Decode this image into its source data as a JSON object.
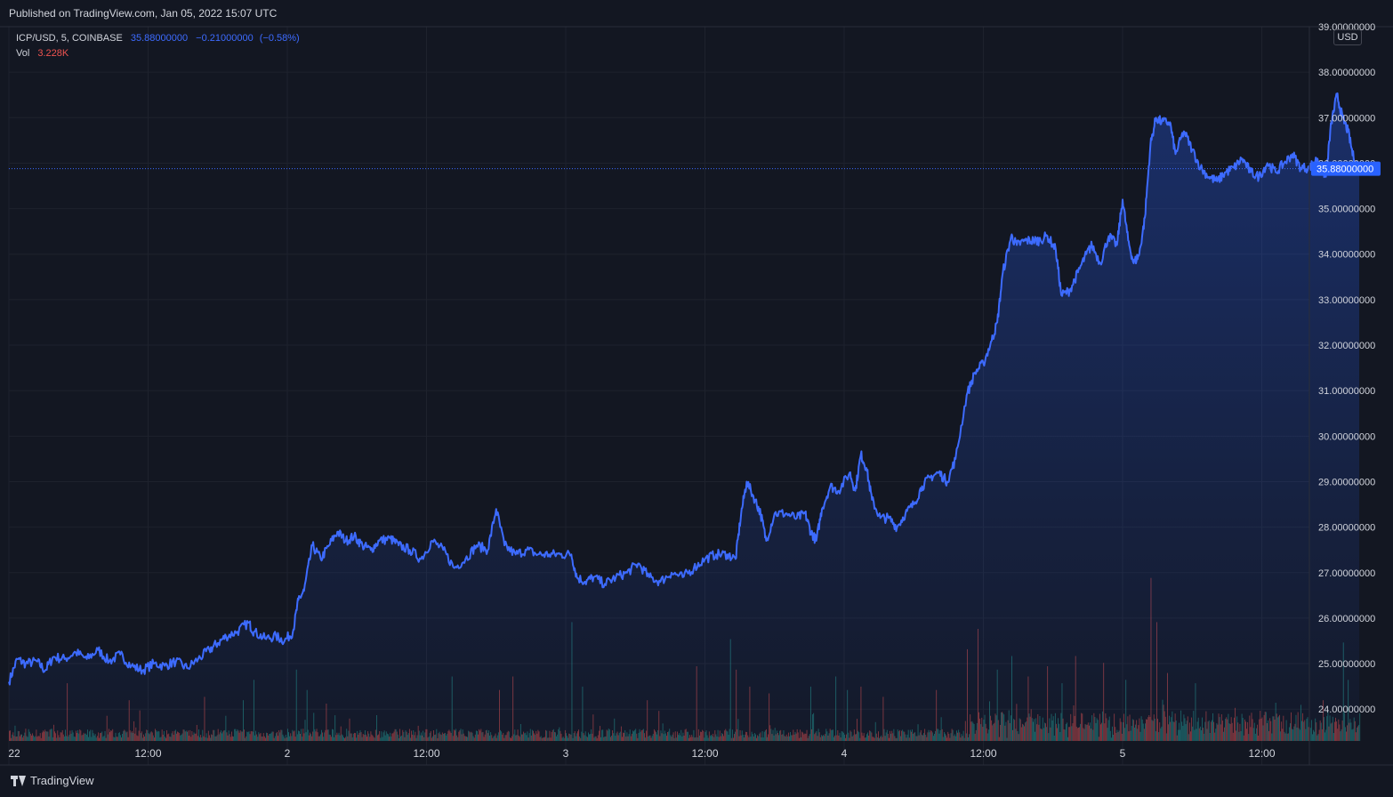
{
  "header": {
    "published": "Published on TradingView.com, Jan 05, 2022 15:07 UTC"
  },
  "legend": {
    "symbol": "ICP/USD, 5, COINBASE",
    "last": "35.88000000",
    "change": "−0.21000000",
    "change_pct": "(−0.58%)",
    "vol_label": "Vol",
    "vol_value": "3.228K"
  },
  "currency_badge": "USD",
  "footer": {
    "brand": "TradingView"
  },
  "colors": {
    "line": "#3d6bff",
    "up": "#26a69a",
    "down": "#ef5350",
    "background": "#131722",
    "grid": "#1e222d"
  },
  "chart_data": {
    "type": "area",
    "ylim": [
      23.3,
      39.0
    ],
    "x_range": [
      0,
      5.48
    ],
    "y_ticks": [
      24,
      25,
      26,
      27,
      28,
      29,
      30,
      31,
      32,
      33,
      34,
      35,
      36,
      37,
      38,
      39
    ],
    "y_tick_labels": [
      "24.00000000",
      "25.00000000",
      "26.00000000",
      "27.00000000",
      "28.00000000",
      "29.00000000",
      "30.00000000",
      "31.00000000",
      "32.00000000",
      "33.00000000",
      "34.00000000",
      "35.00000000",
      "36.00000000",
      "37.00000000",
      "38.00000000",
      "39.00000000"
    ],
    "x_ticks": [
      0.0,
      0.5,
      1.0,
      1.5,
      2.0,
      2.5,
      3.0,
      3.5,
      4.0,
      4.5,
      5.0
    ],
    "x_tick_labels": [
      "22",
      "12:00",
      "2",
      "12:00",
      "3",
      "12:00",
      "4",
      "12:00",
      "5",
      "12:00"
    ],
    "x_tick_label_positions": [
      0.0,
      0.5,
      1.0,
      1.5,
      2.0,
      2.5,
      3.0,
      3.5,
      4.0,
      4.5
    ],
    "last_price": 35.88,
    "last_price_label": "35.88000000",
    "price_points": [
      [
        0.0,
        24.6
      ],
      [
        0.03,
        25.1
      ],
      [
        0.06,
        25.0
      ],
      [
        0.1,
        25.05
      ],
      [
        0.13,
        24.85
      ],
      [
        0.16,
        25.15
      ],
      [
        0.2,
        25.1
      ],
      [
        0.24,
        25.25
      ],
      [
        0.28,
        25.1
      ],
      [
        0.32,
        25.3
      ],
      [
        0.36,
        25.05
      ],
      [
        0.4,
        25.2
      ],
      [
        0.44,
        24.95
      ],
      [
        0.48,
        24.85
      ],
      [
        0.52,
        25.0
      ],
      [
        0.56,
        24.95
      ],
      [
        0.6,
        25.05
      ],
      [
        0.64,
        24.9
      ],
      [
        0.68,
        25.1
      ],
      [
        0.72,
        25.3
      ],
      [
        0.75,
        25.45
      ],
      [
        0.78,
        25.6
      ],
      [
        0.82,
        25.7
      ],
      [
        0.86,
        25.9
      ],
      [
        0.88,
        25.7
      ],
      [
        0.92,
        25.55
      ],
      [
        0.96,
        25.6
      ],
      [
        0.99,
        25.5
      ],
      [
        1.02,
        25.7
      ],
      [
        1.04,
        26.4
      ],
      [
        1.06,
        26.6
      ],
      [
        1.09,
        27.6
      ],
      [
        1.12,
        27.3
      ],
      [
        1.15,
        27.6
      ],
      [
        1.18,
        27.9
      ],
      [
        1.21,
        27.7
      ],
      [
        1.24,
        27.8
      ],
      [
        1.27,
        27.6
      ],
      [
        1.3,
        27.5
      ],
      [
        1.33,
        27.7
      ],
      [
        1.37,
        27.75
      ],
      [
        1.4,
        27.6
      ],
      [
        1.44,
        27.5
      ],
      [
        1.48,
        27.3
      ],
      [
        1.52,
        27.7
      ],
      [
        1.56,
        27.5
      ],
      [
        1.6,
        27.1
      ],
      [
        1.64,
        27.3
      ],
      [
        1.68,
        27.6
      ],
      [
        1.72,
        27.5
      ],
      [
        1.75,
        28.4
      ],
      [
        1.78,
        27.6
      ],
      [
        1.82,
        27.4
      ],
      [
        1.86,
        27.5
      ],
      [
        1.9,
        27.4
      ],
      [
        1.94,
        27.4
      ],
      [
        1.98,
        27.4
      ],
      [
        2.02,
        27.4
      ],
      [
        2.04,
        26.9
      ],
      [
        2.07,
        26.8
      ],
      [
        2.1,
        26.9
      ],
      [
        2.14,
        26.75
      ],
      [
        2.18,
        26.9
      ],
      [
        2.22,
        27.0
      ],
      [
        2.26,
        27.2
      ],
      [
        2.3,
        26.9
      ],
      [
        2.34,
        26.8
      ],
      [
        2.38,
        27.0
      ],
      [
        2.42,
        26.9
      ],
      [
        2.46,
        27.1
      ],
      [
        2.5,
        27.3
      ],
      [
        2.54,
        27.4
      ],
      [
        2.58,
        27.4
      ],
      [
        2.61,
        27.3
      ],
      [
        2.63,
        28.3
      ],
      [
        2.65,
        29.0
      ],
      [
        2.68,
        28.6
      ],
      [
        2.7,
        28.3
      ],
      [
        2.72,
        27.7
      ],
      [
        2.75,
        28.3
      ],
      [
        2.79,
        28.3
      ],
      [
        2.83,
        28.2
      ],
      [
        2.86,
        28.3
      ],
      [
        2.88,
        27.9
      ],
      [
        2.9,
        27.7
      ],
      [
        2.92,
        28.4
      ],
      [
        2.95,
        28.9
      ],
      [
        2.98,
        28.8
      ],
      [
        3.02,
        29.2
      ],
      [
        3.04,
        28.8
      ],
      [
        3.06,
        29.6
      ],
      [
        3.08,
        29.3
      ],
      [
        3.1,
        28.6
      ],
      [
        3.13,
        28.2
      ],
      [
        3.16,
        28.2
      ],
      [
        3.19,
        28.0
      ],
      [
        3.22,
        28.3
      ],
      [
        3.25,
        28.5
      ],
      [
        3.28,
        28.9
      ],
      [
        3.31,
        29.1
      ],
      [
        3.34,
        29.2
      ],
      [
        3.37,
        29.0
      ],
      [
        3.4,
        29.5
      ],
      [
        3.44,
        30.9
      ],
      [
        3.47,
        31.4
      ],
      [
        3.5,
        31.6
      ],
      [
        3.53,
        32.1
      ],
      [
        3.55,
        32.5
      ],
      [
        3.57,
        33.6
      ],
      [
        3.6,
        34.4
      ],
      [
        3.62,
        34.2
      ],
      [
        3.65,
        34.3
      ],
      [
        3.68,
        34.3
      ],
      [
        3.7,
        34.3
      ],
      [
        3.73,
        34.4
      ],
      [
        3.76,
        34.1
      ],
      [
        3.78,
        33.1
      ],
      [
        3.81,
        33.2
      ],
      [
        3.84,
        33.6
      ],
      [
        3.87,
        34.0
      ],
      [
        3.89,
        34.2
      ],
      [
        3.92,
        33.8
      ],
      [
        3.95,
        34.4
      ],
      [
        3.98,
        34.2
      ],
      [
        4.0,
        35.2
      ],
      [
        4.02,
        34.3
      ],
      [
        4.04,
        33.8
      ],
      [
        4.06,
        34.0
      ],
      [
        4.08,
        34.8
      ],
      [
        4.1,
        36.4
      ],
      [
        4.12,
        37.0
      ],
      [
        4.14,
        36.9
      ],
      [
        4.17,
        36.9
      ],
      [
        4.19,
        36.2
      ],
      [
        4.22,
        36.7
      ],
      [
        4.25,
        36.3
      ],
      [
        4.28,
        35.9
      ],
      [
        4.31,
        35.7
      ],
      [
        4.34,
        35.6
      ],
      [
        4.37,
        35.8
      ],
      [
        4.4,
        35.9
      ],
      [
        4.43,
        36.1
      ],
      [
        4.46,
        35.8
      ],
      [
        4.49,
        35.7
      ],
      [
        4.52,
        36.0
      ],
      [
        4.55,
        35.8
      ],
      [
        4.58,
        36.0
      ],
      [
        4.61,
        36.2
      ],
      [
        4.64,
        35.9
      ],
      [
        4.67,
        35.9
      ],
      [
        4.7,
        36.1
      ],
      [
        4.73,
        35.7
      ],
      [
        4.75,
        36.9
      ],
      [
        4.77,
        37.5
      ],
      [
        4.79,
        37.0
      ],
      [
        4.81,
        36.7
      ],
      [
        4.83,
        36.1
      ],
      [
        4.85,
        35.88
      ]
    ],
    "volume_ylim": [
      0,
      5.5
    ],
    "volume_spikes": [
      [
        0.21,
        1.7
      ],
      [
        0.43,
        1.2
      ],
      [
        0.47,
        0.9
      ],
      [
        0.7,
        1.3
      ],
      [
        0.84,
        1.2
      ],
      [
        0.88,
        1.8
      ],
      [
        1.03,
        2.1
      ],
      [
        1.07,
        1.5
      ],
      [
        1.14,
        1.1
      ],
      [
        1.59,
        1.9
      ],
      [
        1.76,
        1.5
      ],
      [
        1.81,
        1.9
      ],
      [
        2.02,
        3.5
      ],
      [
        2.06,
        1.6
      ],
      [
        2.29,
        1.2
      ],
      [
        2.47,
        2.2
      ],
      [
        2.59,
        3.0
      ],
      [
        2.61,
        2.1
      ],
      [
        2.66,
        1.6
      ],
      [
        2.73,
        1.4
      ],
      [
        2.88,
        1.6
      ],
      [
        2.97,
        1.9
      ],
      [
        3.01,
        1.5
      ],
      [
        3.06,
        1.6
      ],
      [
        3.14,
        1.3
      ],
      [
        3.33,
        1.5
      ],
      [
        3.44,
        2.7
      ],
      [
        3.48,
        3.3
      ],
      [
        3.55,
        2.1
      ],
      [
        3.6,
        2.5
      ],
      [
        3.66,
        1.9
      ],
      [
        3.73,
        2.2
      ],
      [
        3.78,
        1.7
      ],
      [
        3.83,
        2.5
      ],
      [
        3.93,
        2.3
      ],
      [
        4.01,
        1.8
      ],
      [
        4.1,
        4.8
      ],
      [
        4.12,
        3.5
      ],
      [
        4.16,
        2.0
      ],
      [
        4.26,
        1.7
      ],
      [
        4.72,
        1.2
      ],
      [
        4.79,
        2.9
      ],
      [
        4.81,
        1.8
      ]
    ]
  }
}
